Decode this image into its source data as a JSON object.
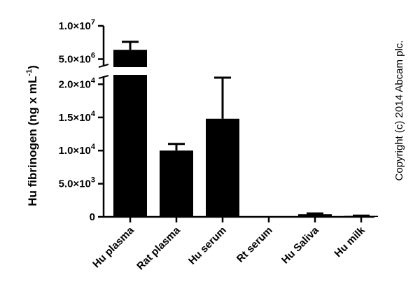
{
  "chart_data": {
    "type": "bar",
    "ylabel": "Hu fibrinogen (ng x mL",
    "ylabel_unit_exp": "-1",
    "ylabel_close": ")",
    "categories": [
      "Hu plasma",
      "Rat plasma",
      "Hu serum",
      "Rt serum",
      "Hu Saliva",
      "Hu milk"
    ],
    "values": [
      6400000,
      10000,
      14800,
      0,
      400,
      150
    ],
    "errors": [
      1200000,
      1000,
      6200,
      0,
      120,
      40
    ],
    "axis_break": true,
    "lower_segment": {
      "ylim": [
        0,
        21000
      ],
      "ticks": [
        0,
        5000,
        10000,
        15000,
        20000
      ]
    },
    "upper_segment": {
      "ylim": [
        4000000,
        10000000
      ],
      "ticks": [
        5000000,
        10000000
      ]
    },
    "tick_labels": [
      {
        "value": 0,
        "mant": "0",
        "exp": ""
      },
      {
        "value": 5000,
        "mant": "5.0×10",
        "exp": "3"
      },
      {
        "value": 10000,
        "mant": "1.0×10",
        "exp": "4"
      },
      {
        "value": 15000,
        "mant": "1.5×10",
        "exp": "4"
      },
      {
        "value": 20000,
        "mant": "2.0×10",
        "exp": "4"
      },
      {
        "value": 5000000,
        "mant": "5.0×10",
        "exp": "6"
      },
      {
        "value": 10000000,
        "mant": "1.0×10",
        "exp": "7"
      }
    ],
    "bar_color": "#000000",
    "copyright": "Copyright (c) 2014 Abcam plc."
  }
}
